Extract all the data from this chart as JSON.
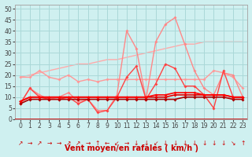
{
  "background_color": "#cff0f0",
  "grid_color": "#aad8d8",
  "xlabel": "Vent moyen/en rafales ( km/h )",
  "xlabel_color": "#cc0000",
  "xlabel_fontsize": 7,
  "yticks": [
    0,
    5,
    10,
    15,
    20,
    25,
    30,
    35,
    40,
    45,
    50
  ],
  "xticks": [
    0,
    1,
    2,
    3,
    4,
    5,
    6,
    7,
    8,
    9,
    10,
    11,
    12,
    13,
    14,
    15,
    16,
    17,
    18,
    19,
    20,
    21,
    22,
    23
  ],
  "ylim": [
    0,
    52
  ],
  "xlim": [
    -0.5,
    23.5
  ],
  "series": [
    {
      "x": [
        0,
        1,
        2,
        3,
        4,
        5,
        6,
        7,
        8,
        9,
        10,
        11,
        12,
        13,
        14,
        15,
        16,
        17,
        18,
        19,
        20,
        21,
        22,
        23
      ],
      "y": [
        19,
        20,
        21,
        22,
        23,
        24,
        25,
        25,
        26,
        27,
        27,
        28,
        29,
        30,
        31,
        32,
        33,
        34,
        34,
        35,
        35,
        35,
        35,
        35
      ],
      "color": "#ffaaaa",
      "lw": 1.0,
      "marker": null,
      "ms": 0,
      "zorder": 1
    },
    {
      "x": [
        0,
        1,
        2,
        3,
        4,
        5,
        6,
        7,
        8,
        9,
        10,
        11,
        12,
        13,
        14,
        15,
        16,
        17,
        18,
        19,
        20,
        21,
        22,
        23
      ],
      "y": [
        19,
        19,
        22,
        19,
        18,
        20,
        17,
        18,
        17,
        18,
        18,
        18,
        18,
        18,
        18,
        18,
        18,
        18,
        18,
        18,
        22,
        21,
        19,
        14
      ],
      "color": "#ff9999",
      "lw": 1.0,
      "marker": "D",
      "ms": 2,
      "zorder": 2
    },
    {
      "x": [
        0,
        1,
        2,
        3,
        4,
        5,
        6,
        7,
        8,
        9,
        10,
        11,
        12,
        13,
        14,
        15,
        16,
        17,
        18,
        19,
        20,
        21,
        22,
        23
      ],
      "y": [
        7,
        14,
        11,
        9,
        10,
        12,
        8,
        9,
        4,
        4,
        11,
        40,
        32,
        9,
        35,
        43,
        46,
        34,
        22,
        14,
        11,
        21,
        20,
        10
      ],
      "color": "#ff8888",
      "lw": 1.0,
      "marker": "D",
      "ms": 2,
      "zorder": 2
    },
    {
      "x": [
        0,
        1,
        2,
        3,
        4,
        5,
        6,
        7,
        8,
        9,
        10,
        11,
        12,
        13,
        14,
        15,
        16,
        17,
        18,
        19,
        20,
        21,
        22,
        23
      ],
      "y": [
        7,
        14,
        10,
        9,
        9,
        10,
        7,
        9,
        3,
        4,
        10,
        19,
        24,
        9,
        16,
        25,
        23,
        15,
        15,
        11,
        5,
        22,
        10,
        10
      ],
      "color": "#ff4444",
      "lw": 1.0,
      "marker": "D",
      "ms": 2,
      "zorder": 3
    },
    {
      "x": [
        0,
        1,
        2,
        3,
        4,
        5,
        6,
        7,
        8,
        9,
        10,
        11,
        12,
        13,
        14,
        15,
        16,
        17,
        18,
        19,
        20,
        21,
        22,
        23
      ],
      "y": [
        8,
        10,
        10,
        10,
        10,
        10,
        10,
        10,
        10,
        10,
        10,
        10,
        10,
        10,
        10,
        10,
        11,
        11,
        11,
        11,
        11,
        11,
        10,
        10
      ],
      "color": "#dd0000",
      "lw": 1.2,
      "marker": "D",
      "ms": 2,
      "zorder": 4
    },
    {
      "x": [
        0,
        1,
        2,
        3,
        4,
        5,
        6,
        7,
        8,
        9,
        10,
        11,
        12,
        13,
        14,
        15,
        16,
        17,
        18,
        19,
        20,
        21,
        22,
        23
      ],
      "y": [
        7,
        9,
        9,
        9,
        9,
        9,
        9,
        9,
        9,
        9,
        9,
        9,
        9,
        9,
        9,
        9,
        9,
        10,
        10,
        10,
        10,
        10,
        9,
        9
      ],
      "color": "#aa0000",
      "lw": 1.2,
      "marker": "D",
      "ms": 2,
      "zorder": 4
    },
    {
      "x": [
        0,
        1,
        2,
        3,
        4,
        5,
        6,
        7,
        8,
        9,
        10,
        11,
        12,
        13,
        14,
        15,
        16,
        17,
        18,
        19,
        20,
        21,
        22,
        23
      ],
      "y": [
        8,
        10,
        10,
        10,
        10,
        10,
        10,
        10,
        10,
        10,
        10,
        10,
        10,
        10,
        11,
        11,
        12,
        12,
        12,
        11,
        11,
        11,
        10,
        10
      ],
      "color": "#ff0000",
      "lw": 1.2,
      "marker": "D",
      "ms": 2,
      "zorder": 4
    }
  ],
  "arrows": [
    "↗",
    "→",
    "↗",
    "→",
    "→",
    "↗",
    "↗",
    "→",
    "↑",
    "←",
    "↙",
    "→",
    "↓",
    "↓",
    "↙",
    "↓",
    "↓",
    "↓",
    "↓",
    "↓",
    "↓",
    "↓",
    "↘",
    "↑"
  ],
  "tick_fontsize": 5.5,
  "arrow_fontsize": 5.5
}
